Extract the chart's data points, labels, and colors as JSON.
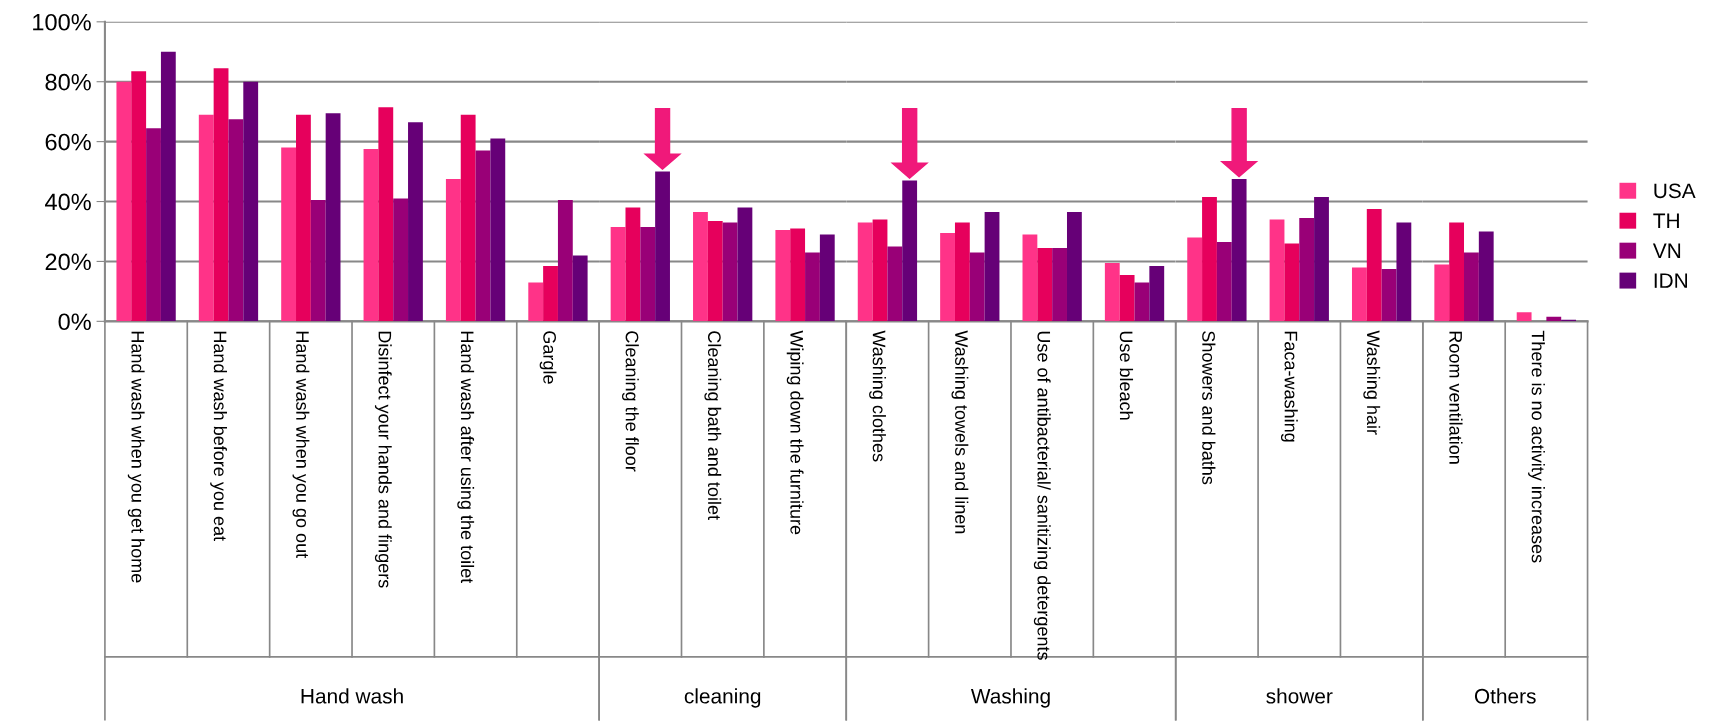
{
  "chart_data": [
    {
      "type": "bar",
      "xlabel": "Hand wash",
      "categories": [
        "Hand wash when you get home",
        "Hand wash before you eat",
        "Hand wash when you go out",
        "Disinfect your hands and fingers",
        "Hand wash after using the toilet",
        "Gargle"
      ],
      "series": [
        {
          "color": "#ff3388",
          "values": [
            80,
            69,
            58,
            57.5,
            47.5,
            13
          ]
        },
        {
          "color": "#e6005c",
          "values": [
            83.5,
            84.5,
            69,
            71.5,
            69,
            18.5
          ]
        },
        {
          "color": "#990077",
          "values": [
            64.5,
            67.5,
            40.5,
            41,
            57,
            40.5
          ]
        },
        {
          "color": "#660077",
          "values": [
            90,
            80,
            69.5,
            66.5,
            61,
            22
          ]
        }
      ],
      "ylim": [
        0,
        100
      ],
      "yticks": [
        {
          "value": 0,
          "label": "0%"
        },
        {
          "value": 20,
          "label": "20%"
        },
        {
          "value": 40,
          "label": "40%"
        },
        {
          "value": 60,
          "label": "60%"
        },
        {
          "value": 80,
          "label": "80%"
        },
        {
          "value": 100,
          "label": "100%"
        }
      ],
      "grid": "y"
    },
    {
      "type": "bar",
      "xlabel": "cleaning",
      "categories": [
        "Cleaning the floor",
        "Cleaning bath and toilet",
        "Wiping down the furniture"
      ],
      "series": [
        {
          "color": "#ff3388",
          "values": [
            31.5,
            36.5,
            30.5
          ]
        },
        {
          "color": "#e6005c",
          "values": [
            38,
            33.5,
            31
          ]
        },
        {
          "color": "#990077",
          "values": [
            31.5,
            33,
            23
          ]
        },
        {
          "color": "#660077",
          "values": [
            50,
            38,
            29
          ]
        }
      ],
      "ylim": [
        0,
        100
      ],
      "yticks": [
        0,
        20,
        40,
        60,
        80,
        100
      ],
      "grid": "y",
      "tick_labels": "x"
    },
    {
      "type": "bar",
      "xlabel": "Washing",
      "categories": [
        "Washing clothes",
        "Washing towels and linen",
        "Use of antibacterial/ sanitizing detergents",
        "Use bleach"
      ],
      "series": [
        {
          "color": "#ff3388",
          "values": [
            33,
            29.5,
            29,
            19.5
          ]
        },
        {
          "color": "#e6005c",
          "values": [
            34,
            33,
            24.5,
            15.5
          ]
        },
        {
          "color": "#990077",
          "values": [
            25,
            23,
            24.5,
            13
          ]
        },
        {
          "color": "#660077",
          "values": [
            47,
            36.5,
            36.5,
            18.5
          ]
        }
      ],
      "ylim": [
        0,
        100
      ],
      "yticks": [
        0,
        20,
        40,
        60,
        80,
        100
      ],
      "grid": "y",
      "tick_labels": "x"
    },
    {
      "type": "bar",
      "xlabel": "shower",
      "categories": [
        "Showers and baths",
        "Faca-washing",
        "Washing hair"
      ],
      "series": [
        {
          "color": "#ff3388",
          "values": [
            28,
            34,
            18
          ]
        },
        {
          "color": "#e6005c",
          "values": [
            41.5,
            26,
            37.5
          ]
        },
        {
          "color": "#990077",
          "values": [
            26.5,
            34.5,
            17.5
          ]
        },
        {
          "color": "#660077",
          "values": [
            47.5,
            41.5,
            33
          ]
        }
      ],
      "ylim": [
        0,
        100
      ],
      "yticks": [
        0,
        20,
        40,
        60,
        80,
        100
      ],
      "grid": "y",
      "tick_labels": "x"
    },
    {
      "type": "bar",
      "xlabel": "Others",
      "categories": [
        "Room ventilation",
        "There is no activity increases"
      ],
      "series": [
        {
          "name": "USA",
          "color": "#ff3388",
          "values": [
            19,
            3
          ]
        },
        {
          "name": "TH",
          "color": "#e6005c",
          "values": [
            33,
            0
          ]
        },
        {
          "name": "VN",
          "color": "#990077",
          "values": [
            23,
            1.5
          ]
        },
        {
          "name": "IDN",
          "color": "#660077",
          "values": [
            30,
            0.5
          ]
        }
      ],
      "ylim": [
        0,
        100
      ],
      "yticks": [
        0,
        20,
        40,
        60,
        80,
        100
      ],
      "grid": "y",
      "tick_labels": "x",
      "legend": "right"
    }
  ]
}
